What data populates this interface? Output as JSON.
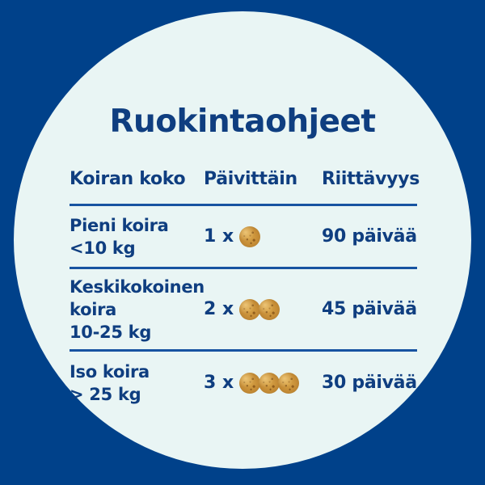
{
  "title": "Ruokintaohjeet",
  "colors": {
    "background": "#00418A",
    "card": "#E9F5F4",
    "text": "#0F3E80",
    "divider": "#1753A1",
    "treat": "#C58C36",
    "treat_light": "#D7A246",
    "treat_dark": "#A3732A"
  },
  "table": {
    "headers": [
      "Koiran koko",
      "Päivittäin",
      "Riittävyys"
    ],
    "rows": [
      {
        "size_lines": [
          "Pieni koira",
          "<10 kg"
        ],
        "daily_label": "1 x",
        "treat_count": 1,
        "duration": "90 päivää"
      },
      {
        "size_lines": [
          "Keskikokoinen",
          "koira",
          "10-25 kg"
        ],
        "daily_label": "2 x",
        "treat_count": 2,
        "duration": "45 päivää"
      },
      {
        "size_lines": [
          "Iso koira",
          "> 25 kg"
        ],
        "daily_label": "3 x",
        "treat_count": 3,
        "duration": "30 päivää"
      }
    ]
  }
}
